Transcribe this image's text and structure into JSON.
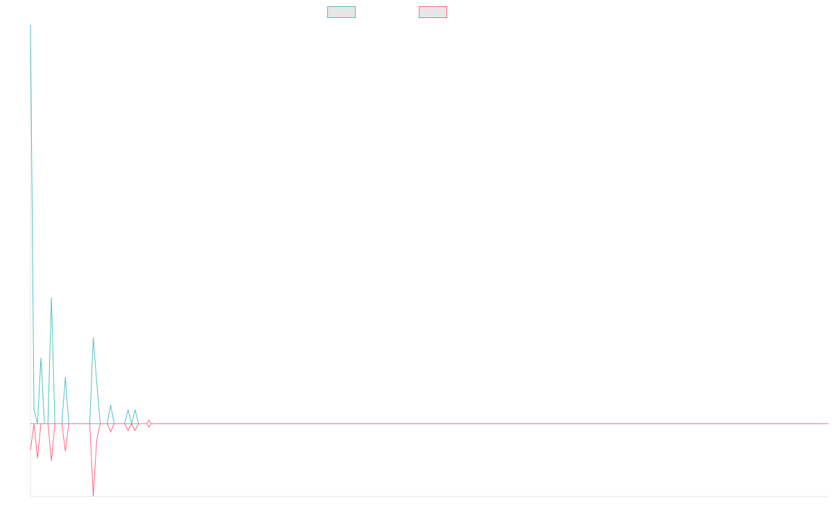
{
  "chart_data": {
    "type": "line",
    "title": "",
    "xlabel": "",
    "ylabel": "",
    "grid": false,
    "legend": {
      "placement": "top-center",
      "entries": [
        {
          "name": "",
          "color": "#4bc0c0",
          "fill": "#e6e6e6"
        },
        {
          "name": "",
          "color": "#ff6384",
          "fill": "#e6e6e6"
        }
      ]
    },
    "x": [
      0,
      1,
      2,
      3,
      4,
      5,
      6,
      7,
      8,
      9,
      10,
      11,
      12,
      13,
      14,
      15,
      16,
      17,
      18,
      19,
      20,
      21,
      22,
      23,
      24,
      25,
      26,
      27,
      28,
      29,
      30,
      31,
      32,
      33,
      34,
      35,
      36,
      37,
      38,
      39,
      40,
      41,
      42,
      43,
      44,
      45,
      46,
      47,
      48,
      49,
      50,
      51,
      52,
      53,
      54,
      55,
      56,
      57,
      58,
      59,
      60,
      61,
      62,
      63,
      64,
      65,
      66,
      67,
      68,
      69,
      70,
      71,
      72,
      73,
      74,
      75,
      76,
      77,
      78,
      79,
      80,
      81,
      82,
      83,
      84,
      85,
      86,
      87,
      88,
      89,
      90,
      91,
      92,
      93,
      94,
      95,
      96,
      97,
      98,
      99,
      100,
      101,
      102,
      103,
      104,
      105,
      106,
      107,
      108,
      109,
      110,
      111,
      112,
      113,
      114,
      115,
      116,
      117,
      118,
      119,
      120,
      121,
      122,
      123,
      124,
      125,
      126,
      127,
      128,
      129,
      130,
      131,
      132,
      133,
      134,
      135,
      136,
      137,
      138,
      139,
      140,
      141,
      142,
      143,
      144,
      145,
      146,
      147,
      148,
      149,
      150,
      151,
      152,
      153,
      154,
      155,
      156,
      157,
      158,
      159,
      160,
      161,
      162,
      163,
      164,
      165,
      166,
      167,
      168,
      169,
      170,
      171,
      172,
      173,
      174,
      175,
      176,
      177,
      178,
      179,
      180,
      181,
      182,
      183,
      184,
      185,
      186,
      187,
      188,
      189,
      190,
      191,
      192,
      193,
      194,
      195,
      196,
      197,
      198,
      199,
      200,
      201,
      202,
      203,
      204,
      205,
      206,
      207,
      208,
      209,
      210,
      211,
      212,
      213,
      214,
      215,
      216,
      217,
      218,
      219,
      220,
      221,
      222,
      223,
      224,
      225,
      226,
      227,
      228,
      229
    ],
    "series": [
      {
        "color": "#4bc0c0",
        "values": [
          575,
          20,
          0,
          95,
          0,
          0,
          182,
          0,
          0,
          0,
          67,
          0,
          0,
          0,
          0,
          0,
          0,
          0,
          124,
          60,
          0,
          0,
          0,
          27,
          0,
          0,
          0,
          0,
          20,
          0,
          20,
          0,
          0,
          0,
          0,
          0,
          0,
          0,
          0,
          0,
          0,
          0,
          0,
          0,
          0,
          0,
          0,
          0,
          0,
          0,
          0,
          0,
          0,
          0,
          0,
          0,
          0,
          0,
          0,
          0,
          0,
          0,
          0,
          0,
          0,
          0,
          0,
          0,
          0,
          0,
          0,
          0,
          0,
          0,
          0,
          0,
          0,
          0,
          0,
          0,
          0,
          0,
          0,
          0,
          0,
          0,
          0,
          0,
          0,
          0,
          0,
          0,
          0,
          0,
          0,
          0,
          0,
          0,
          0,
          0,
          0,
          0,
          0,
          0,
          0,
          0,
          0,
          0,
          0,
          0,
          0,
          0,
          0,
          0,
          0,
          0,
          0,
          0,
          0,
          0,
          0,
          0,
          0,
          0,
          0,
          0,
          0,
          0,
          0,
          0,
          0,
          0,
          0,
          0,
          0,
          0,
          0,
          0,
          0,
          0,
          0,
          0,
          0,
          0,
          0,
          0,
          0,
          0,
          0,
          0,
          0,
          0,
          0,
          0,
          0,
          0,
          0,
          0,
          0,
          0,
          0,
          0,
          0,
          0,
          0,
          0,
          0,
          0,
          0,
          0,
          0,
          0,
          0,
          0,
          0,
          0,
          0,
          0,
          0,
          0,
          0,
          0,
          0,
          0,
          0,
          0,
          0,
          0,
          0,
          0,
          0,
          0,
          0,
          0,
          0,
          0,
          0,
          0,
          0,
          0,
          0,
          0,
          0,
          0,
          0,
          0,
          0,
          0,
          0,
          0,
          0,
          0,
          0,
          0,
          0,
          0,
          0,
          0,
          0,
          0,
          0,
          0,
          0,
          0,
          0,
          0,
          0,
          0,
          0,
          0
        ]
      },
      {
        "color": "#ff6384",
        "values": [
          -38,
          0,
          -50,
          0,
          0,
          0,
          -54,
          0,
          0,
          0,
          -40,
          0,
          0,
          0,
          0,
          0,
          0,
          0,
          -105,
          -24,
          0,
          0,
          0,
          -12,
          0,
          0,
          0,
          0,
          -10,
          0,
          -10,
          0,
          0,
          0,
          0,
          0,
          0,
          0,
          0,
          0,
          0,
          0,
          0,
          0,
          0,
          0,
          0,
          0,
          0,
          0,
          0,
          0,
          0,
          0,
          0,
          0,
          0,
          0,
          0,
          0,
          0,
          0,
          0,
          0,
          0,
          0,
          0,
          0,
          0,
          0,
          0,
          0,
          0,
          0,
          0,
          0,
          0,
          0,
          0,
          0,
          0,
          0,
          0,
          0,
          0,
          0,
          0,
          0,
          0,
          0,
          0,
          0,
          0,
          0,
          0,
          0,
          0,
          0,
          0,
          0,
          0,
          0,
          0,
          0,
          0,
          0,
          0,
          0,
          0,
          0,
          0,
          0,
          0,
          0,
          0,
          0,
          0,
          0,
          0,
          0,
          0,
          0,
          0,
          0,
          0,
          0,
          0,
          0,
          0,
          0,
          0,
          0,
          0,
          0,
          0,
          0,
          0,
          0,
          0,
          0,
          0,
          0,
          0,
          0,
          0,
          0,
          0,
          0,
          0,
          0,
          0,
          0,
          0,
          0,
          0,
          0,
          0,
          0,
          0,
          0,
          0,
          0,
          0,
          0,
          0,
          0,
          0,
          0,
          0,
          0,
          0,
          0,
          0,
          0,
          0,
          0,
          0,
          0,
          0,
          0,
          0,
          0,
          0,
          0,
          0,
          0,
          0,
          0,
          0,
          0,
          0,
          0,
          0,
          0,
          0,
          0,
          0,
          0,
          0,
          0,
          0,
          0,
          0,
          0,
          0,
          0,
          0,
          0,
          0,
          0,
          0,
          0,
          0,
          0,
          0,
          0,
          0,
          0,
          0,
          0,
          0,
          0,
          0,
          0,
          0,
          0,
          0,
          0,
          0,
          0
        ]
      }
    ],
    "xlim": [
      0,
      229
    ],
    "ylim": [
      -105,
      575
    ],
    "axis_color": "#e5e5e5",
    "zero_line_color": "#7aa8aa"
  }
}
